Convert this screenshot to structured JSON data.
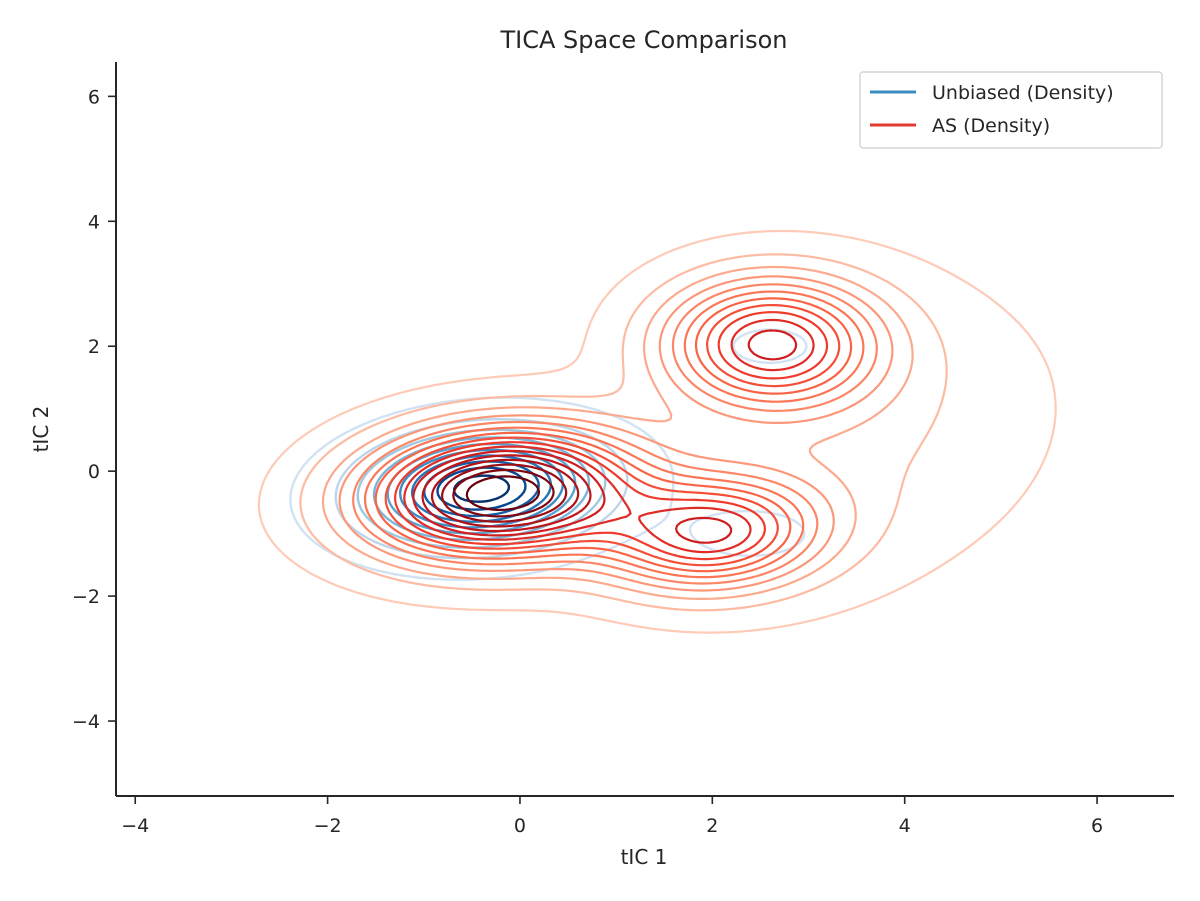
{
  "chart_data": {
    "type": "contour",
    "title": "TICA Space Comparison",
    "xlabel": "tIC 1",
    "ylabel": "tIC 2",
    "xlim": [
      -4.2,
      6.8
    ],
    "ylim": [
      -5.2,
      6.55
    ],
    "x_ticks": [
      -4,
      -2,
      0,
      2,
      4,
      6
    ],
    "y_ticks": [
      -4,
      -2,
      0,
      2,
      4,
      6
    ],
    "x_tick_labels": [
      "−4",
      "−2",
      "0",
      "2",
      "4",
      "6"
    ],
    "y_tick_labels": [
      "−4",
      "−2",
      "0",
      "2",
      "4",
      "6"
    ],
    "grid": false,
    "legend_position": "top-right",
    "series": [
      {
        "name": "Unbiased (Density)",
        "color": "#3a8bc2",
        "cmap": "Blues",
        "levels": 10,
        "components": [
          {
            "weight": 1.0,
            "mean": [
              -0.4,
              -0.28
            ],
            "sigma": [
              0.75,
              0.55
            ],
            "rho": 0.12
          },
          {
            "weight": 0.05,
            "mean": [
              2.4,
              -1.0
            ],
            "sigma": [
              0.55,
              0.35
            ],
            "rho": 0.0
          },
          {
            "weight": 0.04,
            "mean": [
              2.6,
              2.0
            ],
            "sigma": [
              0.5,
              0.35
            ],
            "rho": 0.0
          }
        ]
      },
      {
        "name": "AS (Density)",
        "color": "#e03c31",
        "cmap": "Reds",
        "levels": 16,
        "components": [
          {
            "weight": 1.0,
            "mean": [
              -0.2,
              -0.35
            ],
            "sigma": [
              0.95,
              0.7
            ],
            "rho": 0.1
          },
          {
            "weight": 0.62,
            "mean": [
              2.6,
              2.05
            ],
            "sigma": [
              0.75,
              0.7
            ],
            "rho": 0.0
          },
          {
            "weight": 0.58,
            "mean": [
              2.0,
              -1.0
            ],
            "sigma": [
              0.75,
              0.6
            ],
            "rho": 0.1
          },
          {
            "weight": 0.1,
            "mean": [
              3.4,
              0.5
            ],
            "sigma": [
              1.4,
              1.6
            ],
            "rho": 0.2
          }
        ]
      }
    ]
  }
}
